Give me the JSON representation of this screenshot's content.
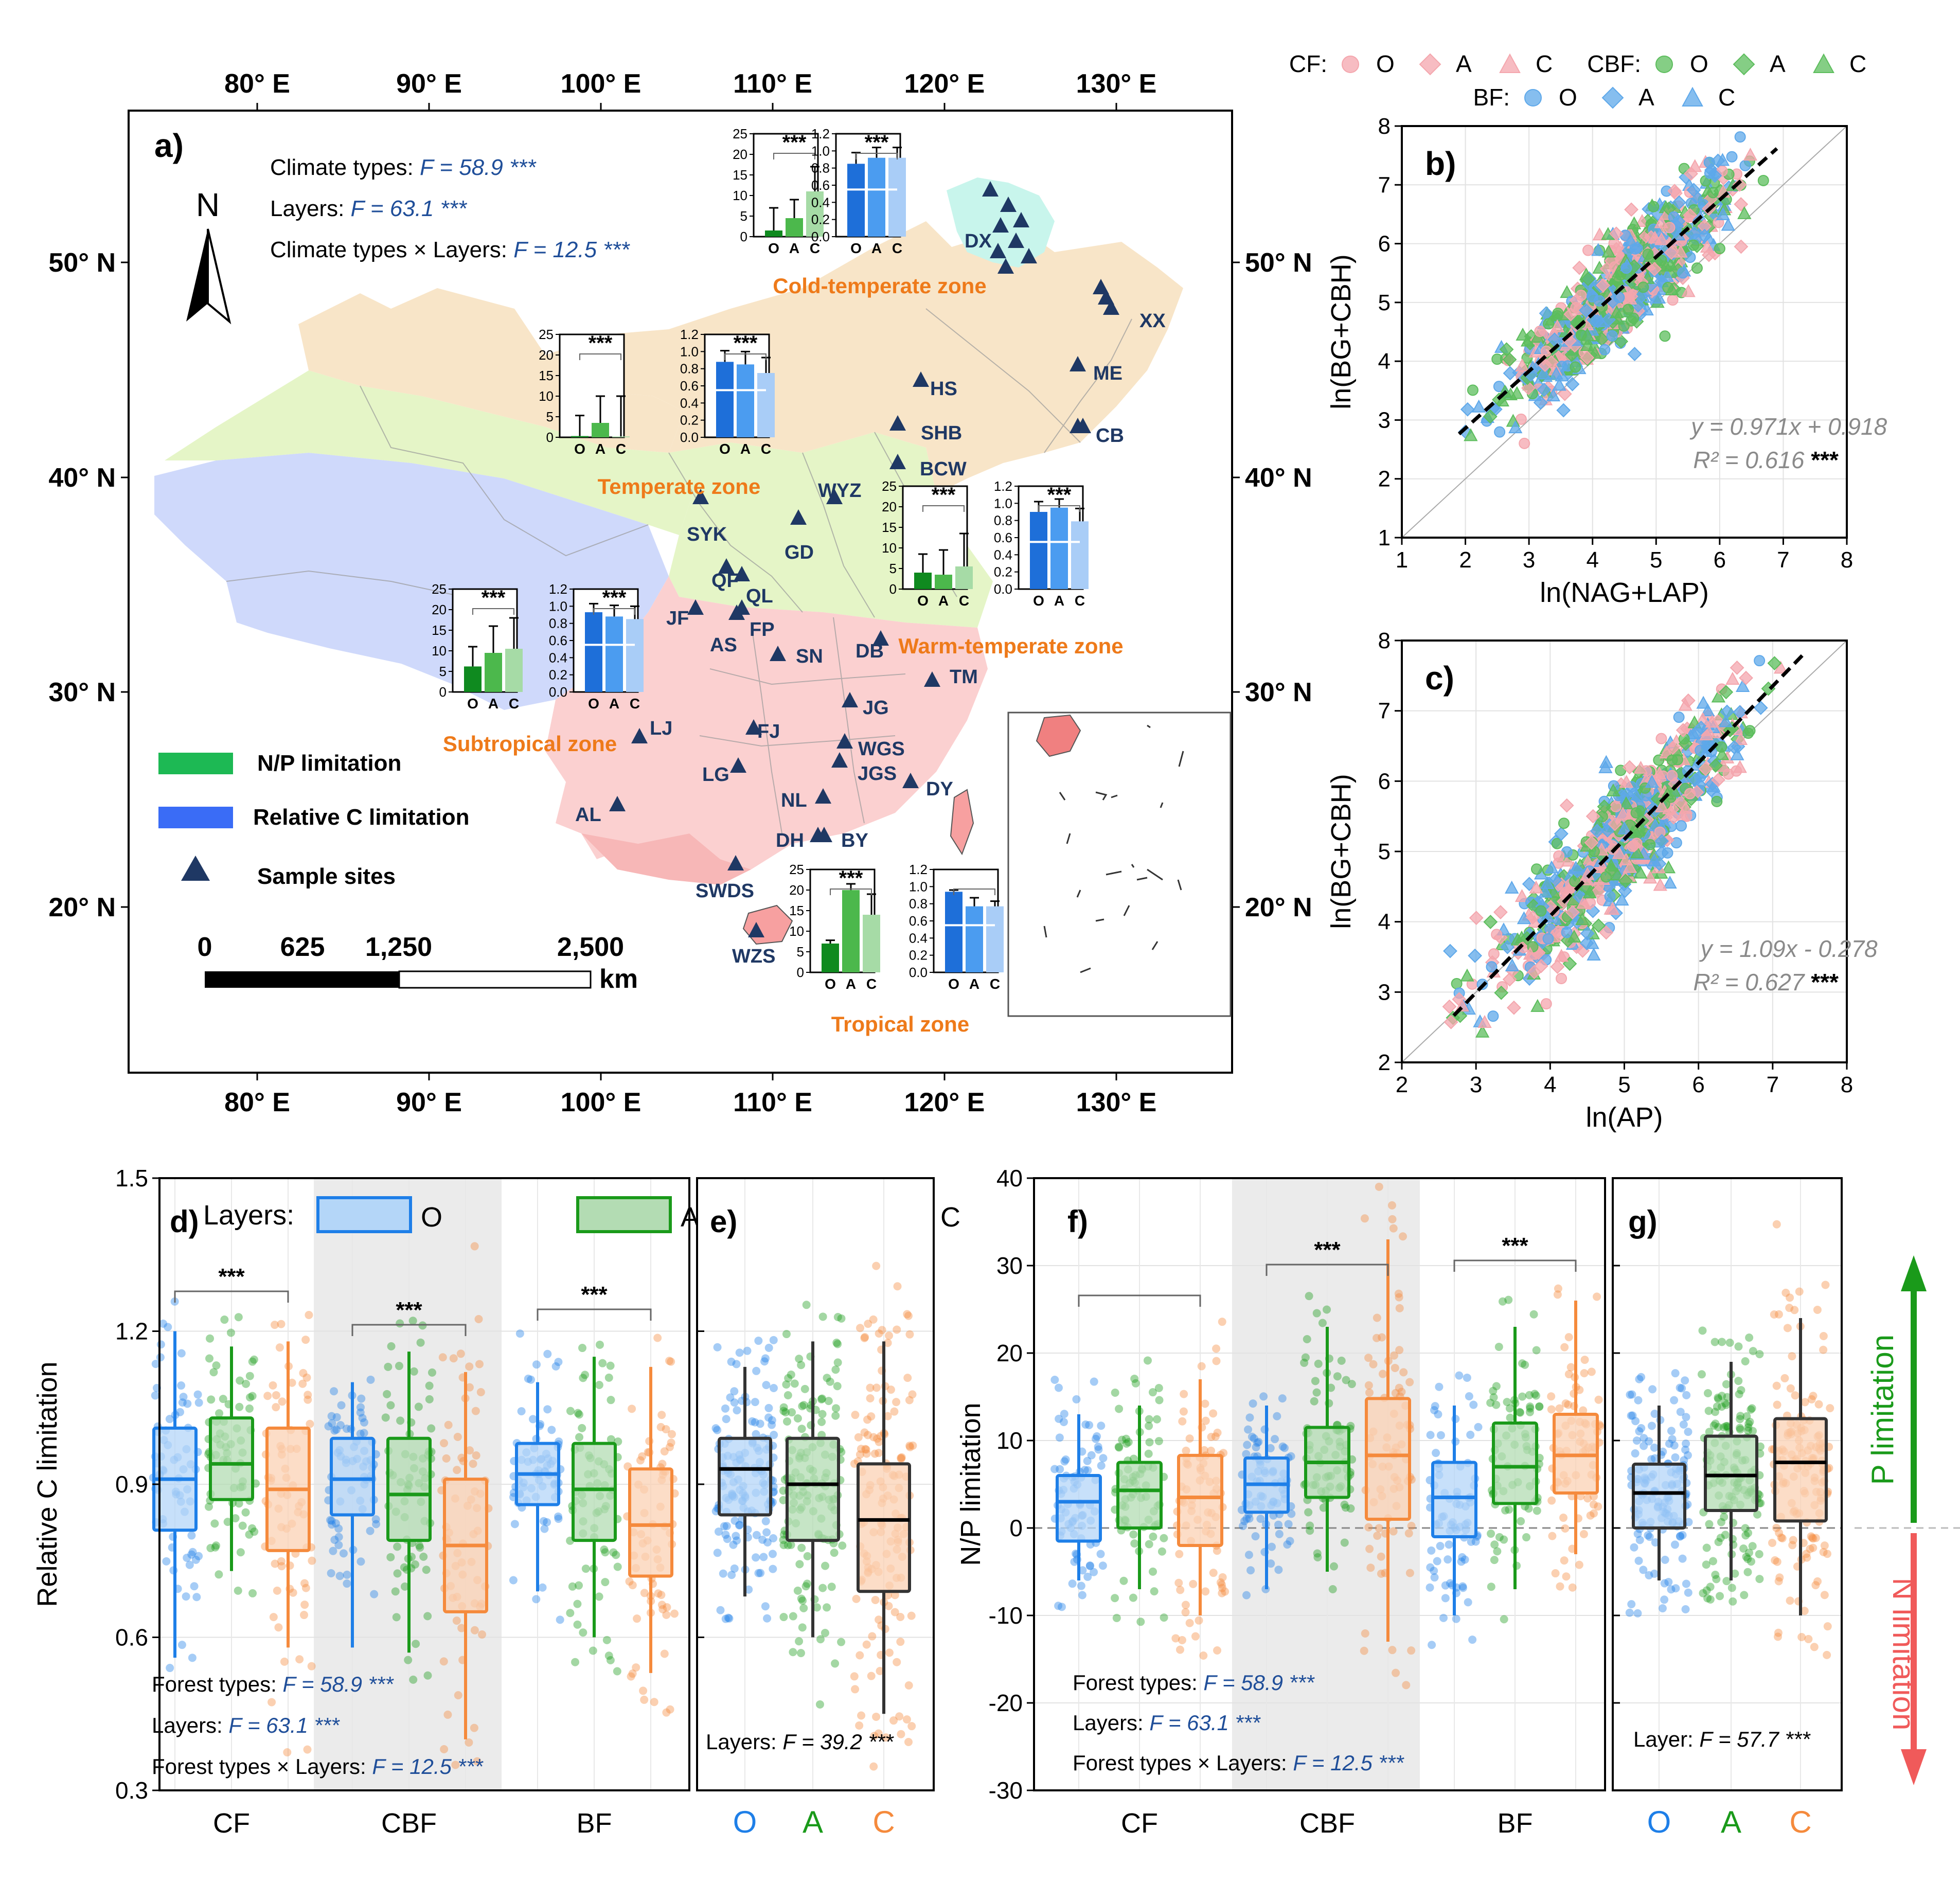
{
  "map_panel": {
    "label": "a)",
    "top_lon_ticks": [
      "80° E",
      "90° E",
      "100° E",
      "110° E",
      "120° E",
      "130° E"
    ],
    "bottom_lon_ticks": [
      "80° E",
      "90° E",
      "100° E",
      "110° E",
      "120° E",
      "130° E"
    ],
    "left_lat_ticks": [
      "50° N",
      "40° N",
      "30° N",
      "20° N"
    ],
    "right_lat_ticks": [
      "50° N",
      "40° N",
      "30° N",
      "20° N"
    ],
    "stats": [
      {
        "label": "Climate types: ",
        "f": "F = 58.9 ***"
      },
      {
        "label": "Layers: ",
        "f": "F = 63.1 ***"
      },
      {
        "label": "Climate types × Layers: ",
        "f": "F = 12.5 ***"
      }
    ],
    "north": "N",
    "legend": [
      {
        "label": "N/P limitation",
        "color": "#1db954"
      },
      {
        "label": "Relative C limitation",
        "color": "#3a6cf6"
      },
      {
        "label": "Sample sites",
        "color": "#1f3864"
      }
    ],
    "scalebar": {
      "ticks": [
        "0",
        "625",
        "1,250",
        "2,500"
      ],
      "unit": "km"
    },
    "zone_colors": {
      "cold_temperate": "#c8f5ec",
      "temperate": "#f8e5c8",
      "warm_temperate": "#e5f5c7",
      "subtropical": "#fbd0d0",
      "plateau": "#cfd9fb"
    },
    "sites": [
      {
        "code": "DX"
      },
      {
        "code": "XX"
      },
      {
        "code": "ME"
      },
      {
        "code": "CB"
      },
      {
        "code": "HS"
      },
      {
        "code": "SHB"
      },
      {
        "code": "BCW"
      },
      {
        "code": "WYZ"
      },
      {
        "code": "SYK"
      },
      {
        "code": "GD"
      },
      {
        "code": "QF"
      },
      {
        "code": "QL"
      },
      {
        "code": "JF"
      },
      {
        "code": "FP"
      },
      {
        "code": "AS"
      },
      {
        "code": "SN"
      },
      {
        "code": "DB"
      },
      {
        "code": "TM"
      },
      {
        "code": "JG"
      },
      {
        "code": "LJ"
      },
      {
        "code": "FJ"
      },
      {
        "code": "WGS"
      },
      {
        "code": "JGS"
      },
      {
        "code": "LG"
      },
      {
        "code": "DY"
      },
      {
        "code": "NL"
      },
      {
        "code": "AL"
      },
      {
        "code": "DH"
      },
      {
        "code": "BY"
      },
      {
        "code": "SWDS"
      },
      {
        "code": "WZS"
      }
    ],
    "insets": [
      {
        "zone": "Cold-temperate zone",
        "np_values": [
          1.5,
          4.5,
          11
        ],
        "np_err": [
          5.5,
          4.5,
          6
        ],
        "np_sig": "***",
        "c_values": [
          0.85,
          0.92,
          0.92
        ],
        "c_err": [
          0.13,
          0.12,
          0.12
        ],
        "c_sig": "***"
      },
      {
        "zone": "Temperate zone",
        "np_values": [
          0.3,
          3.5,
          0.2
        ],
        "np_err": [
          5,
          6.5,
          9.8
        ],
        "np_sig": "***",
        "c_values": [
          0.88,
          0.85,
          0.75
        ],
        "c_err": [
          0.13,
          0.15,
          0.18
        ],
        "c_sig": "***"
      },
      {
        "zone": "Warm-temperate zone",
        "np_values": [
          4,
          3.5,
          5.5
        ],
        "np_err": [
          4.5,
          6,
          8
        ],
        "np_sig": "***",
        "c_values": [
          0.9,
          0.95,
          0.79
        ],
        "c_err": [
          0.12,
          0.1,
          0.15
        ],
        "c_sig": "***"
      },
      {
        "zone": "Subtropical zone",
        "np_values": [
          6.2,
          9.5,
          10.5
        ],
        "np_err": [
          4.8,
          6.5,
          7.5
        ],
        "np_sig": "***",
        "c_values": [
          0.93,
          0.88,
          0.85
        ],
        "c_err": [
          0.1,
          0.13,
          0.15
        ],
        "c_sig": "***"
      },
      {
        "zone": "Tropical zone",
        "np_values": [
          7,
          20,
          14
        ],
        "np_err": [
          0.8,
          1.5,
          5
        ],
        "np_sig": "***",
        "c_values": [
          0.94,
          0.77,
          0.77
        ],
        "c_err": [
          0.02,
          0.1,
          0.06
        ],
        "c_sig": ""
      }
    ],
    "inset_np_ticks": [
      "0",
      "5",
      "10",
      "15",
      "20",
      "25"
    ],
    "inset_c_ticks": [
      "0.0",
      "0.2",
      "0.4",
      "0.6",
      "0.8",
      "1.0",
      "1.2"
    ],
    "inset_layers": [
      "O",
      "A",
      "C"
    ]
  },
  "top_legend": {
    "groups": [
      {
        "name": "CF:",
        "items": [
          "O",
          "A",
          "C"
        ],
        "color": "#f4a6ad"
      },
      {
        "name": "CBF:",
        "items": [
          "O",
          "A",
          "C"
        ],
        "color": "#5cbd5c"
      },
      {
        "name": "BF:",
        "items": [
          "O",
          "A",
          "C"
        ],
        "color": "#5ea8ea"
      }
    ]
  },
  "chart_data": [
    {
      "panel": "b)",
      "type": "scatter",
      "xlabel": "ln(NAG+LAP)",
      "ylabel": "ln(BG+CBH)",
      "xlim": [
        1,
        8
      ],
      "ylim": [
        1,
        8
      ],
      "x_ticks": [
        "1",
        "2",
        "3",
        "4",
        "5",
        "6",
        "7",
        "8"
      ],
      "y_ticks": [
        "1",
        "2",
        "3",
        "4",
        "5",
        "6",
        "7",
        "8"
      ],
      "equation": "y = 0.971x + 0.918",
      "r2": "R² = 0.616",
      "sig": "***",
      "fit": {
        "slope": 0.971,
        "intercept": 0.918,
        "x_range": [
          1.9,
          6.9
        ]
      },
      "cloud": {
        "x_center": 4.5,
        "x_sd": 0.9,
        "noise_sd": 0.42,
        "x_min": 1.7,
        "x_max": 7.0
      }
    },
    {
      "panel": "c)",
      "type": "scatter",
      "xlabel": "ln(AP)",
      "ylabel": "ln(BG+CBH)",
      "xlim": [
        2,
        8
      ],
      "ylim": [
        2,
        8
      ],
      "x_ticks": [
        "2",
        "3",
        "4",
        "5",
        "6",
        "7",
        "8"
      ],
      "y_ticks": [
        "2",
        "3",
        "4",
        "5",
        "6",
        "7",
        "8"
      ],
      "equation": "y = 1.09x - 0.278",
      "r2": "R² = 0.627",
      "sig": "***",
      "fit": {
        "slope": 1.09,
        "intercept": -0.278,
        "x_range": [
          2.7,
          7.4
        ]
      },
      "cloud": {
        "x_center": 4.9,
        "x_sd": 0.85,
        "noise_sd": 0.42,
        "x_min": 2.5,
        "x_max": 7.4
      }
    },
    {
      "panel": "d)",
      "type": "box",
      "ylabel": "Relative C limitation",
      "ylim": [
        0.3,
        1.5
      ],
      "y_ticks": [
        "0.3",
        "0.6",
        "0.9",
        "1.2",
        "1.5"
      ],
      "categories": [
        "CF",
        "CBF",
        "BF"
      ],
      "legend_title": "Layers:",
      "layers": [
        "O",
        "A",
        "C"
      ],
      "layer_colors": [
        "#1e7fe8",
        "#1a9a1a",
        "#f58a3c"
      ],
      "layer_fills": [
        "#b4d6f8",
        "#b3dcb3",
        "#fbd2b4"
      ],
      "boxes": [
        [
          {
            "q1": 0.81,
            "med": 0.91,
            "q3": 1.01,
            "lo": 0.56,
            "hi": 1.2
          },
          {
            "q1": 0.87,
            "med": 0.94,
            "q3": 1.03,
            "lo": 0.73,
            "hi": 1.17
          },
          {
            "q1": 0.77,
            "med": 0.89,
            "q3": 1.01,
            "lo": 0.58,
            "hi": 1.18
          }
        ],
        [
          {
            "q1": 0.84,
            "med": 0.91,
            "q3": 0.99,
            "lo": 0.58,
            "hi": 1.1
          },
          {
            "q1": 0.79,
            "med": 0.88,
            "q3": 0.99,
            "lo": 0.57,
            "hi": 1.16
          },
          {
            "q1": 0.65,
            "med": 0.78,
            "q3": 0.91,
            "lo": 0.4,
            "hi": 1.12
          }
        ],
        [
          {
            "q1": 0.86,
            "med": 0.92,
            "q3": 0.98,
            "lo": 0.69,
            "hi": 1.1
          },
          {
            "q1": 0.79,
            "med": 0.89,
            "q3": 0.98,
            "lo": 0.6,
            "hi": 1.15
          },
          {
            "q1": 0.72,
            "med": 0.82,
            "q3": 0.93,
            "lo": 0.53,
            "hi": 1.13
          }
        ]
      ],
      "sig": [
        "***",
        "***",
        "***"
      ],
      "stats": [
        {
          "label": "Forest types: ",
          "f": "F = 58.9 ***"
        },
        {
          "label": "Layers: ",
          "f": "F = 63.1 ***"
        },
        {
          "label": "Forest types × Layers: ",
          "f": "F = 12.5 ***"
        }
      ]
    },
    {
      "panel": "e)",
      "type": "box",
      "categories": [
        "O",
        "A",
        "C"
      ],
      "boxes": [
        {
          "q1": 0.84,
          "med": 0.93,
          "q3": 0.99,
          "lo": 0.68,
          "hi": 1.13
        },
        {
          "q1": 0.79,
          "med": 0.9,
          "q3": 0.99,
          "lo": 0.6,
          "hi": 1.18
        },
        {
          "q1": 0.69,
          "med": 0.83,
          "q3": 0.94,
          "lo": 0.45,
          "hi": 1.18
        }
      ],
      "stat": {
        "label": "Layers: ",
        "f": "F = 39.2 ***"
      }
    },
    {
      "panel": "f)",
      "type": "box",
      "ylabel": "N/P limitation",
      "ylim": [
        -30,
        40
      ],
      "y_ticks": [
        "-30",
        "-20",
        "-10",
        "0",
        "10",
        "20",
        "30",
        "40"
      ],
      "categories": [
        "CF",
        "CBF",
        "BF"
      ],
      "boxes": [
        [
          {
            "q1": -1.5,
            "med": 3,
            "q3": 6,
            "lo": -6,
            "hi": 13
          },
          {
            "q1": 0,
            "med": 4.3,
            "q3": 7.5,
            "lo": -7,
            "hi": 14
          },
          {
            "q1": -2,
            "med": 3.5,
            "q3": 8.3,
            "lo": -10,
            "hi": 17
          }
        ],
        [
          {
            "q1": 1.8,
            "med": 5,
            "q3": 8,
            "lo": -7,
            "hi": 14
          },
          {
            "q1": 3.5,
            "med": 7.5,
            "q3": 11.5,
            "lo": -5,
            "hi": 23
          },
          {
            "q1": 1,
            "med": 8.3,
            "q3": 14.8,
            "lo": -13,
            "hi": 33
          }
        ],
        [
          {
            "q1": -1,
            "med": 3.5,
            "q3": 7.5,
            "lo": -10,
            "hi": 14
          },
          {
            "q1": 2.8,
            "med": 7,
            "q3": 12,
            "lo": -7,
            "hi": 23
          },
          {
            "q1": 4,
            "med": 8.3,
            "q3": 13,
            "lo": -3,
            "hi": 26
          }
        ]
      ],
      "sig": [
        "",
        "***",
        "***"
      ],
      "stats": [
        {
          "label": "Forest types: ",
          "f": "F = 58.9 ***"
        },
        {
          "label": "Layers: ",
          "f": "F = 63.1 ***"
        },
        {
          "label": "Forest types × Layers: ",
          "f": "F = 12.5 ***"
        }
      ]
    },
    {
      "panel": "g)",
      "type": "box",
      "categories": [
        "O",
        "A",
        "C"
      ],
      "boxes": [
        {
          "q1": 0,
          "med": 4,
          "q3": 7.3,
          "lo": -6,
          "hi": 14
        },
        {
          "q1": 2,
          "med": 6,
          "q3": 10.5,
          "lo": -6,
          "hi": 19
        },
        {
          "q1": 0.8,
          "med": 7.5,
          "q3": 12.5,
          "lo": -10,
          "hi": 24
        }
      ],
      "stat": {
        "label": "Layer: ",
        "f": "F = 57.7 ***"
      },
      "arrow_up": "P limitation",
      "arrow_down": "N limitation"
    }
  ]
}
